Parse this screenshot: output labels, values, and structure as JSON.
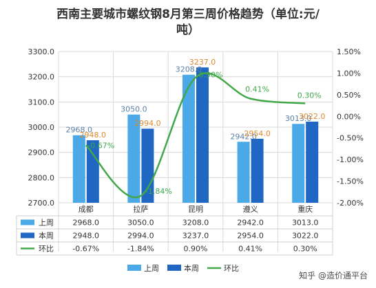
{
  "title_line1": "西南主要城市螺纹钢8月第三周价格趋势（单位:元/",
  "title_line2": "吨）",
  "watermark_text": "知乎 @造价通平台",
  "chart_data": {
    "type": "bar",
    "categories": [
      "成都",
      "拉萨",
      "昆明",
      "遵义",
      "重庆"
    ],
    "series": [
      {
        "name": "上周",
        "type": "bar",
        "color": "#4aa9e6",
        "values": [
          2968.0,
          3050.0,
          3208.0,
          2942.0,
          3013.0
        ],
        "labels": [
          "2968.0",
          "3050.0",
          "3208.0",
          "2942.0",
          "3013.0"
        ],
        "label_color": "#5b7fa8"
      },
      {
        "name": "本周",
        "type": "bar",
        "color": "#1f67c2",
        "values": [
          2948.0,
          2994.0,
          3237.0,
          2954.0,
          3022.0
        ],
        "labels": [
          "2948.0",
          "2994.0",
          "3237.0",
          "2954.0",
          "3022.0"
        ],
        "label_color": "#e0892e"
      },
      {
        "name": "环比",
        "type": "line",
        "color": "#41a84a",
        "axis": "right",
        "values": [
          -0.67,
          -1.84,
          0.9,
          0.41,
          0.3
        ],
        "labels": [
          "-0.67%",
          "-1.84%",
          "0.90%",
          "0.41%",
          "0.30%"
        ],
        "label_color": "#41a84a"
      }
    ],
    "table_values": [
      [
        "2968.0",
        "3050.0",
        "3208.0",
        "2942.0",
        "3013.0"
      ],
      [
        "2948.0",
        "2994.0",
        "3237.0",
        "2954.0",
        "3022.0"
      ],
      [
        "-0.67%",
        "-1.84%",
        "0.90%",
        "0.41%",
        "0.30%"
      ]
    ],
    "y_left": {
      "min": 2700,
      "max": 3300,
      "step": 100,
      "ticks": [
        "2700.0",
        "2800.0",
        "2900.0",
        "3000.0",
        "3100.0",
        "3200.0",
        "3300.0"
      ]
    },
    "y_right": {
      "min": -2.0,
      "max": 1.5,
      "step": 0.5,
      "ticks": [
        "-2.00%",
        "-1.50%",
        "-1.00%",
        "-0.50%",
        "0.00%",
        "0.50%",
        "1.00%",
        "1.50%"
      ]
    },
    "grid": true,
    "legend_position": "bottom"
  }
}
